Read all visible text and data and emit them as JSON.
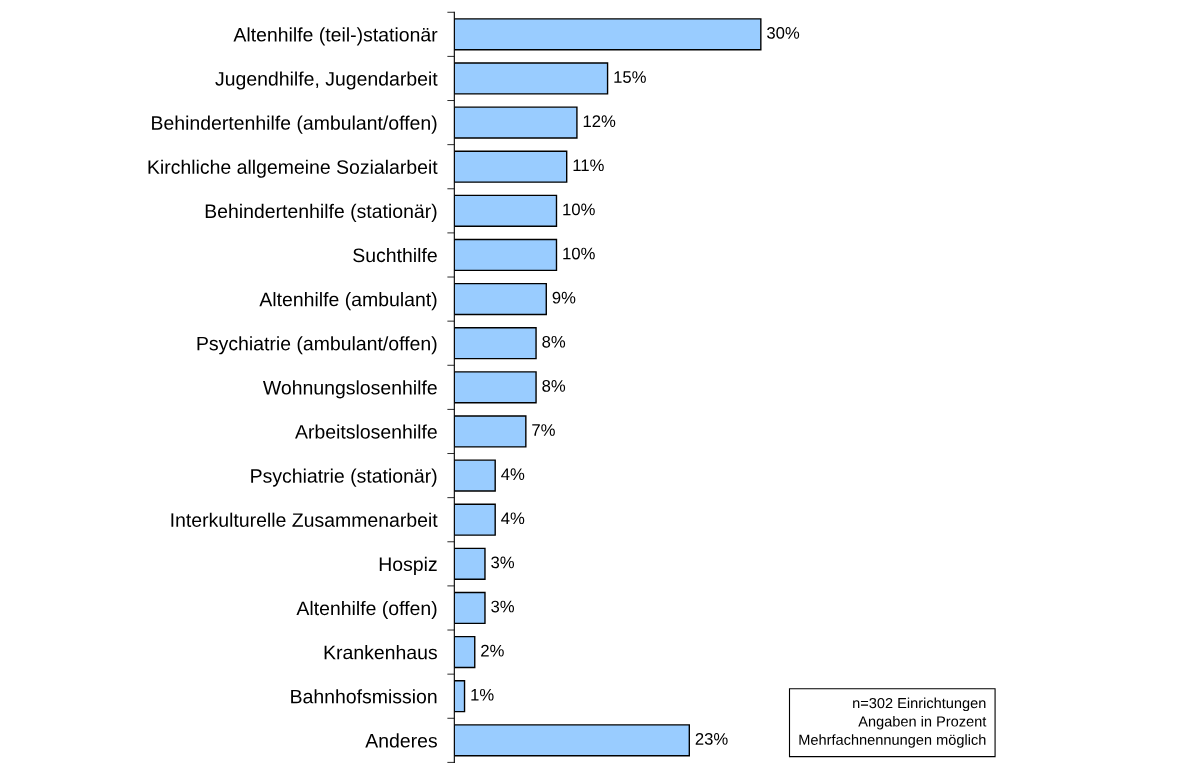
{
  "chart_data": {
    "type": "bar",
    "orientation": "horizontal",
    "categories": [
      "Altenhilfe (teil-)stationär",
      "Jugendhilfe, Jugendarbeit",
      "Behindertenhilfe (ambulant/offen)",
      "Kirchliche allgemeine Sozialarbeit",
      "Behindertenhilfe (stationär)",
      "Suchthilfe",
      "Altenhilfe (ambulant)",
      "Psychiatrie (ambulant/offen)",
      "Wohnungslosenhilfe",
      "Arbeitslosenhilfe",
      "Psychiatrie (stationär)",
      "Interkulturelle Zusammenarbeit",
      "Hospiz",
      "Altenhilfe (offen)",
      "Krankenhaus",
      "Bahnhofsmission",
      "Anderes"
    ],
    "values": [
      30,
      15,
      12,
      11,
      10,
      10,
      9,
      8,
      8,
      7,
      4,
      4,
      3,
      3,
      2,
      1,
      23
    ],
    "value_labels": [
      "30%",
      "15%",
      "12%",
      "11%",
      "10%",
      "10%",
      "9%",
      "8%",
      "8%",
      "7%",
      "4%",
      "4%",
      "3%",
      "3%",
      "2%",
      "1%",
      "23%"
    ],
    "color": "#99ccff",
    "tick_labels": "y",
    "grid": false,
    "legend": false,
    "annotations": [
      "n=302 Einrichtungen\nAngaben in Prozent\nMehrfachnennungen möglich"
    ]
  }
}
